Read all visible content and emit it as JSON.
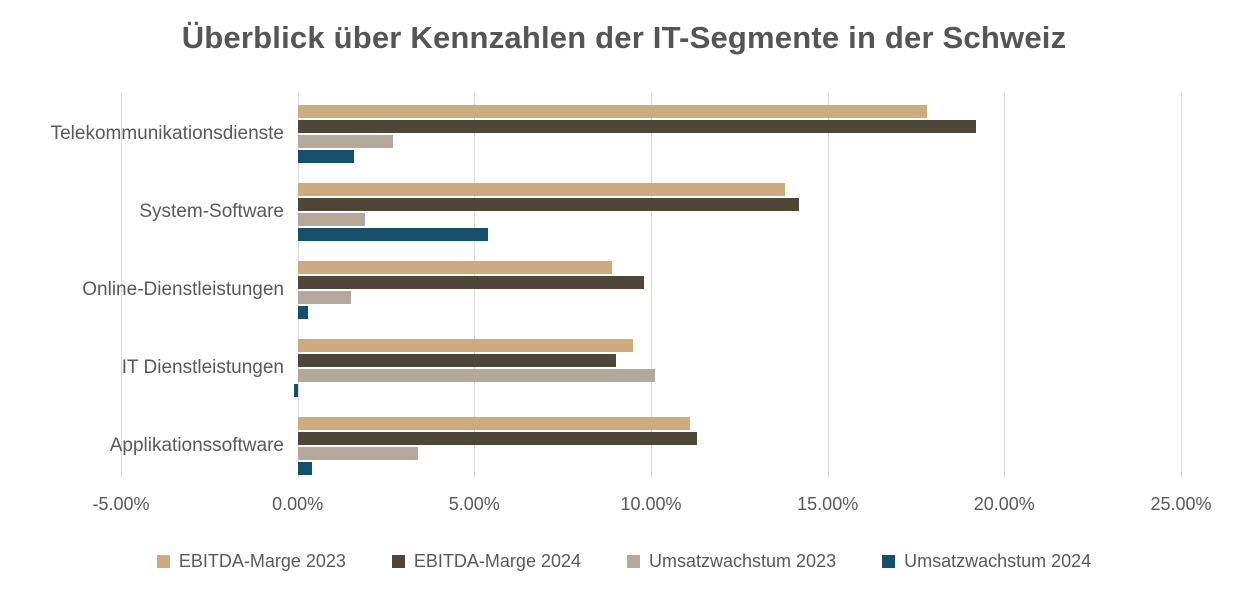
{
  "title": "Überblick über Kennzahlen der IT-Segmente in der Schweiz",
  "chart_data": {
    "type": "bar",
    "orientation": "horizontal",
    "title": "Überblick über Kennzahlen der IT-Segmente in der Schweiz",
    "categories": [
      "Telekommunikationsdienste",
      "System-Software",
      "Online-Dienstleistungen",
      "IT Dienstleistungen",
      "Applikationssoftware"
    ],
    "series": [
      {
        "name": "EBITDA-Marge 2023",
        "color": "#CDAB7D",
        "values": [
          17.8,
          13.8,
          8.9,
          9.5,
          11.1
        ]
      },
      {
        "name": "EBITDA-Marge 2024",
        "color": "#4E4637",
        "values": [
          19.2,
          14.2,
          9.8,
          9.0,
          11.3
        ]
      },
      {
        "name": "Umsatzwachstum 2023",
        "color": "#B3A89A",
        "values": [
          2.7,
          1.9,
          1.5,
          10.1,
          3.4
        ]
      },
      {
        "name": "Umsatzwachstum 2024",
        "color": "#14506C",
        "values": [
          1.6,
          5.4,
          0.3,
          -0.1,
          0.4
        ]
      }
    ],
    "x_ticks": [
      "-5.00%",
      "0.00%",
      "5.00%",
      "10.00%",
      "15.00%",
      "20.00%",
      "25.00%"
    ],
    "x_min": -5,
    "x_max": 25,
    "unit": "%",
    "grid": true,
    "gridline_color": "#D9D9D9",
    "legend_position": "bottom"
  }
}
